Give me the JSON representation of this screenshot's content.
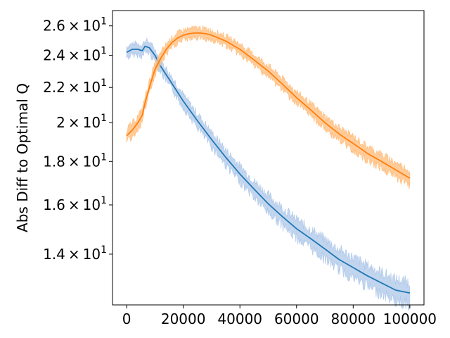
{
  "chart_data": {
    "type": "line",
    "title": "",
    "xlabel": "",
    "ylabel": "Abs Diff to Optimal Q",
    "xlim": [
      -5000,
      105000
    ],
    "ylim": [
      12.2,
      27.1
    ],
    "yscale": "log",
    "grid": false,
    "legend": "none",
    "x_ticks": [
      {
        "value": 0,
        "label": "0"
      },
      {
        "value": 20000,
        "label": "20000"
      },
      {
        "value": 40000,
        "label": "40000"
      },
      {
        "value": 60000,
        "label": "60000"
      },
      {
        "value": 80000,
        "label": "80000"
      },
      {
        "value": 100000,
        "label": "100000"
      }
    ],
    "y_ticks": [
      {
        "value": 14,
        "mantissa": "1.4",
        "exponent": "1"
      },
      {
        "value": 16,
        "mantissa": "1.6",
        "exponent": "1"
      },
      {
        "value": 18,
        "mantissa": "1.8",
        "exponent": "1"
      },
      {
        "value": 20,
        "mantissa": "2",
        "exponent": "1"
      },
      {
        "value": 22,
        "mantissa": "2.2",
        "exponent": "1"
      },
      {
        "value": 24,
        "mantissa": "2.4",
        "exponent": "1"
      },
      {
        "value": 26,
        "mantissa": "2.6",
        "exponent": "1"
      }
    ],
    "series": [
      {
        "color": "#1f77b4",
        "band_color": "#aec7e8",
        "x": [
          0,
          2000,
          4000,
          5500,
          6500,
          8000,
          10000,
          12000,
          15000,
          20000,
          25000,
          30000,
          35000,
          40000,
          45000,
          50000,
          55000,
          60000,
          65000,
          70000,
          75000,
          80000,
          85000,
          90000,
          95000,
          100000
        ],
        "values": [
          24.2,
          24.4,
          24.4,
          24.3,
          24.6,
          24.5,
          24.0,
          23.3,
          22.5,
          21.2,
          20.1,
          19.1,
          18.2,
          17.4,
          16.7,
          16.05,
          15.5,
          15.0,
          14.6,
          14.2,
          13.8,
          13.5,
          13.2,
          12.95,
          12.7,
          12.6
        ],
        "band": 0.6
      },
      {
        "color": "#ff7f0e",
        "band_color": "#ffbb78",
        "x": [
          0,
          2000,
          4000,
          5500,
          6500,
          8000,
          10000,
          12000,
          14000,
          16000,
          18000,
          20000,
          22000,
          24000,
          26000,
          28000,
          30000,
          35000,
          40000,
          45000,
          50000,
          55000,
          60000,
          65000,
          70000,
          75000,
          80000,
          85000,
          90000,
          95000,
          100000
        ],
        "values": [
          19.3,
          19.6,
          20.0,
          20.4,
          21.1,
          22.0,
          23.1,
          23.8,
          24.4,
          24.85,
          25.15,
          25.35,
          25.45,
          25.5,
          25.5,
          25.45,
          25.35,
          24.95,
          24.4,
          23.7,
          23.0,
          22.2,
          21.4,
          20.7,
          20.0,
          19.4,
          18.9,
          18.4,
          18.0,
          17.6,
          17.2
        ],
        "band": 0.55
      }
    ]
  }
}
